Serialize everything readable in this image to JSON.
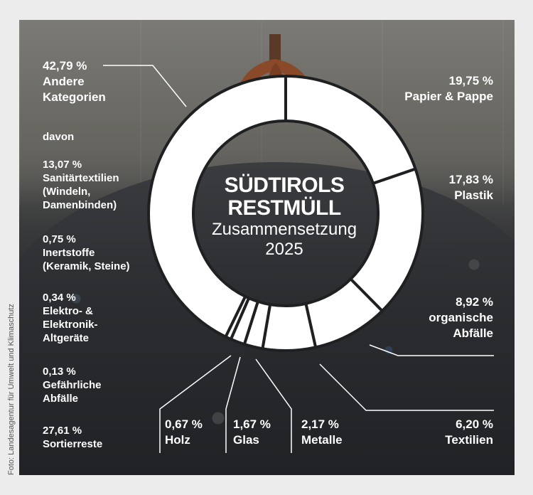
{
  "chart_data": {
    "type": "pie",
    "title": "SÜDTIROLS RESTMÜLL",
    "subtitle": "Zusammensetzung 2025",
    "slices": [
      {
        "percent_label": "19,75 %",
        "label": "Papier & Pappe",
        "value": 19.75
      },
      {
        "percent_label": "17,83 %",
        "label": "Plastik",
        "value": 17.83
      },
      {
        "percent_label": "8,92 %",
        "label": "organische Abfälle",
        "value": 8.92
      },
      {
        "percent_label": "6,20 %",
        "label": "Textilien",
        "value": 6.2
      },
      {
        "percent_label": "2,17 %",
        "label": "Metalle",
        "value": 2.17
      },
      {
        "percent_label": "1,67 %",
        "label": "Glas",
        "value": 1.67
      },
      {
        "percent_label": "0,67 %",
        "label": "Holz",
        "value": 0.67
      },
      {
        "percent_label": "42,79 %",
        "label": "Andere Kategorien",
        "value": 42.79
      }
    ],
    "breakdown_title": "davon",
    "breakdown": [
      {
        "percent_label": "13,07 %",
        "label": "Sanitärtextilien (Windeln, Damenbinden)",
        "value": 13.07
      },
      {
        "percent_label": "0,75 %",
        "label": "Inertstoffe (Keramik, Steine)",
        "value": 0.75
      },
      {
        "percent_label": "0,34 %",
        "label": "Elektro- & Elektronik-Altgeräte",
        "value": 0.34
      },
      {
        "percent_label": "0,13 %",
        "label": "Gefährliche Abfälle",
        "value": 0.13
      },
      {
        "percent_label": "27,61 %",
        "label": "Sortierreste",
        "value": 27.61
      }
    ],
    "slice_color": "#ffffff",
    "separator_color": "#1f2022"
  },
  "labels": {
    "andere_l1": "Andere",
    "andere_l2": "Kategorien",
    "sanitaer_l1": "Sanitärtextilien",
    "sanitaer_l2": "(Windeln,",
    "sanitaer_l3": "Damenbinden)",
    "inert_l1": "Inertstoffe",
    "inert_l2": "(Keramik, Steine)",
    "elektro_l1": "Elektro- &",
    "elektro_l2": "Elektronik-",
    "elektro_l3": "Altgeräte",
    "gefaehrlich_l1": "Gefährliche",
    "gefaehrlich_l2": "Abfälle",
    "organisch_l1": "organische",
    "organisch_l2": "Abfälle",
    "title_l1": "SÜDTIROLS",
    "title_l2": "RESTMÜLL",
    "subtitle_l1": "Zusammensetzung",
    "subtitle_l2": "2025"
  },
  "credit": "Foto: Landesagentur für Umwelt und Klimaschutz"
}
